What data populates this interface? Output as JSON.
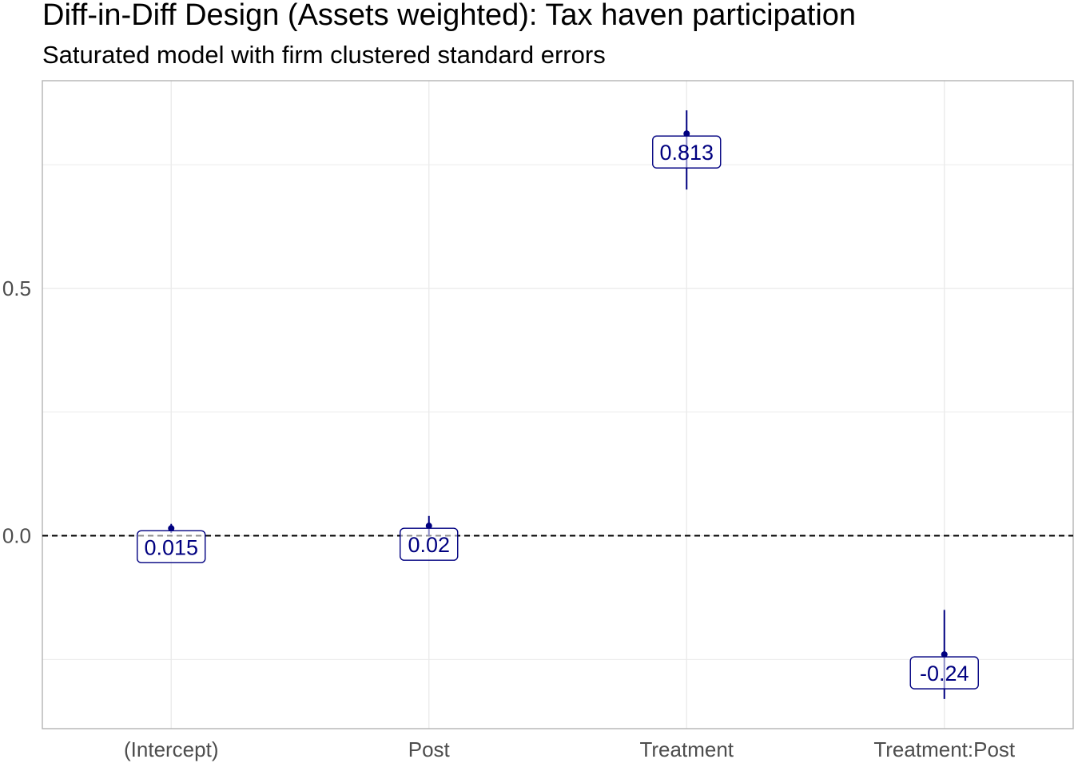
{
  "chart_data": {
    "type": "scatter",
    "title": "Diff-in-Diff Design (Assets weighted): Tax haven participation",
    "subtitle": "Saturated model with firm clustered standard errors",
    "xlabel": "",
    "ylabel": "",
    "categories": [
      "(Intercept)",
      "Post",
      "Treatment",
      "Treatment:Post"
    ],
    "estimates": [
      0.015,
      0.02,
      0.813,
      -0.24
    ],
    "data_labels": [
      "0.015",
      "0.02",
      "0.813",
      "-0.24"
    ],
    "ci_lower": [
      0.006,
      0.0,
      0.7,
      -0.33
    ],
    "ci_upper": [
      0.024,
      0.04,
      0.86,
      -0.15
    ],
    "ylim": [
      -0.39,
      0.92
    ],
    "y_ticks": [
      0.0,
      0.5
    ],
    "y_tick_labels": [
      "0.0",
      "0.5"
    ],
    "y_minor_gridlines": [
      -0.25,
      0.25,
      0.75
    ],
    "reference_line": 0,
    "grid": true,
    "legend": "none",
    "colors": {
      "estimate": "#000080",
      "grid": "#ebebeb",
      "panel_border": "#b3b3b3",
      "reference_line": "#000000"
    }
  }
}
